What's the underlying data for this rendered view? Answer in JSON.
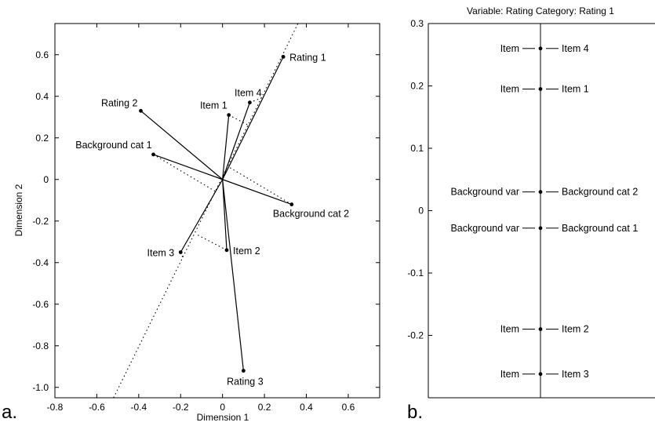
{
  "chart_data": [
    {
      "type": "scatter",
      "panel_label": "a.",
      "xlabel": "Dimension 1",
      "ylabel": "Dimension 2",
      "xlim": [
        -0.8,
        0.75
      ],
      "ylim": [
        -1.05,
        0.75
      ],
      "xticks": [
        "-0.8",
        "-0.6",
        "-0.4",
        "-0.2",
        "0",
        "0.2",
        "0.4",
        "0.6"
      ],
      "yticks": [
        "-1.0",
        "-0.8",
        "-0.6",
        "-0.4",
        "-0.2",
        "0",
        "0.2",
        "0.4",
        "0.6"
      ],
      "grid": false,
      "origin": [
        0,
        0
      ],
      "points": [
        {
          "label": "Rating 1",
          "x": 0.29,
          "y": 0.59
        },
        {
          "label": "Rating 2",
          "x": -0.39,
          "y": 0.33
        },
        {
          "label": "Rating 3",
          "x": 0.1,
          "y": -0.92
        },
        {
          "label": "Item 1",
          "x": 0.03,
          "y": 0.31
        },
        {
          "label": "Item 2",
          "x": 0.02,
          "y": -0.34
        },
        {
          "label": "Item 3",
          "x": -0.2,
          "y": -0.35
        },
        {
          "label": "Item 4",
          "x": 0.13,
          "y": 0.37
        },
        {
          "label": "Background cat 1",
          "x": -0.33,
          "y": 0.12
        },
        {
          "label": "Background cat 2",
          "x": 0.33,
          "y": -0.12
        }
      ],
      "reference_axis": {
        "from": [
          -0.52,
          -1.05
        ],
        "to": [
          0.36,
          0.75
        ],
        "style": "dotted"
      },
      "projections": [
        {
          "from": [
            0.03,
            0.31
          ],
          "to": [
            0.127,
            0.259
          ]
        },
        {
          "from": [
            0.13,
            0.37
          ],
          "to": [
            0.193,
            0.395
          ]
        },
        {
          "from": [
            -0.33,
            0.12
          ],
          "to": [
            -0.03,
            -0.06
          ]
        },
        {
          "from": [
            0.33,
            -0.12
          ],
          "to": [
            0.03,
            0.06
          ]
        },
        {
          "from": [
            0.02,
            -0.34
          ],
          "to": [
            -0.128,
            -0.262
          ]
        },
        {
          "from": [
            -0.2,
            -0.35
          ],
          "to": [
            -0.187,
            -0.382
          ]
        }
      ]
    },
    {
      "type": "scatter",
      "panel_label": "b.",
      "title": "Variable: Rating  Category: Rating 1",
      "ylim": [
        -0.3,
        0.3
      ],
      "yticks": [
        "0.3",
        "0.2",
        "0.1",
        "0",
        "-0.1",
        "-0.2"
      ],
      "grid": false,
      "points": [
        {
          "left": "Item",
          "right": "Item 4",
          "y": 0.26
        },
        {
          "left": "Item",
          "right": "Item 1",
          "y": 0.195
        },
        {
          "left": "Background var",
          "right": "Background cat 2",
          "y": 0.03
        },
        {
          "left": "Background var",
          "right": "Background cat 1",
          "y": -0.028
        },
        {
          "left": "Item",
          "right": "Item 2",
          "y": -0.19
        },
        {
          "left": "Item",
          "right": "Item 3",
          "y": -0.262
        }
      ]
    }
  ]
}
